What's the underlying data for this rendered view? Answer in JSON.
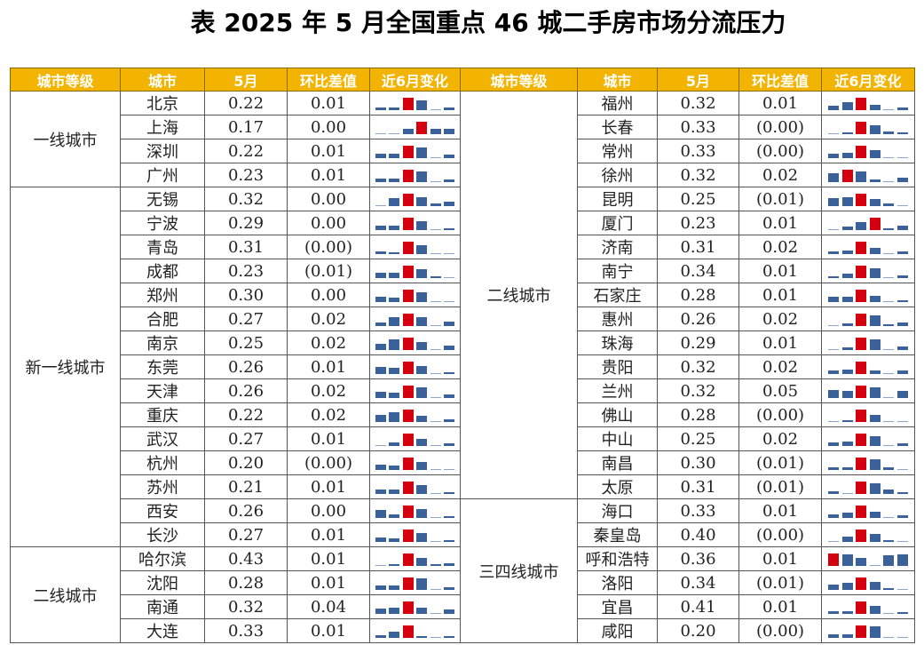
{
  "title": "表 2025 年 5 月全国重点 46 城二手房市场分流压力",
  "headers": [
    "城市等级",
    "城市",
    "5月",
    "环比差值",
    "近6月变化",
    "城市等级",
    "城市",
    "5月",
    "环比差值",
    "近6月变化"
  ],
  "colors": {
    "header_bg": "#f2b400",
    "header_text": "#ffffff",
    "negative_text": "#d0202a",
    "bar_blue": "#3a6199",
    "bar_red": "#d40010"
  },
  "left": {
    "groups": [
      {
        "grade": "一线城市",
        "rows": [
          {
            "city": "北京",
            "may": "0.22",
            "diff": "0.01",
            "neg": false,
            "spark": [
              3,
              3,
              14,
              11,
              1,
              3
            ],
            "peak": 2
          },
          {
            "city": "上海",
            "may": "0.17",
            "diff": "0.00",
            "neg": false,
            "spark": [
              1,
              1,
              6,
              14,
              6,
              6
            ],
            "peak": 3
          },
          {
            "city": "深圳",
            "may": "0.22",
            "diff": "0.01",
            "neg": false,
            "spark": [
              5,
              5,
              14,
              12,
              1,
              4
            ],
            "peak": 2
          },
          {
            "city": "广州",
            "may": "0.23",
            "diff": "0.01",
            "neg": false,
            "spark": [
              4,
              4,
              14,
              12,
              1,
              3
            ],
            "peak": 2
          }
        ]
      },
      {
        "grade": "新一线城市",
        "rows": [
          {
            "city": "无锡",
            "may": "0.32",
            "diff": "0.00",
            "neg": false,
            "spark": [
              1,
              9,
              14,
              10,
              3,
              5
            ],
            "peak": 2
          },
          {
            "city": "宁波",
            "may": "0.29",
            "diff": "0.00",
            "neg": false,
            "spark": [
              5,
              5,
              14,
              10,
              1,
              2
            ],
            "peak": 2
          },
          {
            "city": "青岛",
            "may": "0.31",
            "diff": "(0.00)",
            "neg": true,
            "spark": [
              3,
              2,
              14,
              10,
              1,
              1
            ],
            "peak": 2
          },
          {
            "city": "成都",
            "may": "0.23",
            "diff": "(0.01)",
            "neg": true,
            "spark": [
              6,
              6,
              14,
              10,
              2,
              1
            ],
            "peak": 2
          },
          {
            "city": "郑州",
            "may": "0.30",
            "diff": "0.00",
            "neg": false,
            "spark": [
              6,
              5,
              14,
              11,
              1,
              1
            ],
            "peak": 2
          },
          {
            "city": "合肥",
            "may": "0.27",
            "diff": "0.02",
            "neg": false,
            "spark": [
              4,
              10,
              14,
              10,
              1,
              5
            ],
            "peak": 2
          },
          {
            "city": "南京",
            "may": "0.25",
            "diff": "0.02",
            "neg": false,
            "spark": [
              7,
              12,
              14,
              9,
              1,
              5
            ],
            "peak": 2
          },
          {
            "city": "东莞",
            "may": "0.26",
            "diff": "0.01",
            "neg": false,
            "spark": [
              8,
              7,
              14,
              9,
              1,
              2
            ],
            "peak": 2
          },
          {
            "city": "天津",
            "may": "0.26",
            "diff": "0.02",
            "neg": false,
            "spark": [
              7,
              6,
              14,
              12,
              1,
              4
            ],
            "peak": 2
          },
          {
            "city": "重庆",
            "may": "0.22",
            "diff": "0.02",
            "neg": false,
            "spark": [
              8,
              11,
              14,
              7,
              1,
              3
            ],
            "peak": 2
          },
          {
            "city": "武汉",
            "may": "0.27",
            "diff": "0.01",
            "neg": false,
            "spark": [
              1,
              4,
              14,
              8,
              1,
              3
            ],
            "peak": 2
          },
          {
            "city": "杭州",
            "may": "0.20",
            "diff": "(0.00)",
            "neg": true,
            "spark": [
              6,
              5,
              14,
              9,
              1,
              1
            ],
            "peak": 2
          },
          {
            "city": "苏州",
            "may": "0.21",
            "diff": "0.01",
            "neg": false,
            "spark": [
              5,
              5,
              14,
              10,
              1,
              2
            ],
            "peak": 2
          },
          {
            "city": "西安",
            "may": "0.26",
            "diff": "0.00",
            "neg": false,
            "spark": [
              9,
              4,
              14,
              10,
              1,
              2
            ],
            "peak": 2
          },
          {
            "city": "长沙",
            "may": "0.27",
            "diff": "0.01",
            "neg": false,
            "spark": [
              5,
              4,
              14,
              10,
              1,
              2
            ],
            "peak": 2
          }
        ]
      },
      {
        "grade": "二线城市",
        "rows": [
          {
            "city": "哈尔滨",
            "may": "0.43",
            "diff": "0.01",
            "neg": false,
            "spark": [
              1,
              2,
              14,
              9,
              2,
              3
            ],
            "peak": 2
          },
          {
            "city": "沈阳",
            "may": "0.28",
            "diff": "0.01",
            "neg": false,
            "spark": [
              5,
              5,
              14,
              13,
              1,
              3
            ],
            "peak": 2
          },
          {
            "city": "南通",
            "may": "0.32",
            "diff": "0.04",
            "neg": false,
            "spark": [
              6,
              7,
              14,
              7,
              1,
              5
            ],
            "peak": 2
          },
          {
            "city": "大连",
            "may": "0.33",
            "diff": "0.01",
            "neg": false,
            "spark": [
              3,
              7,
              14,
              2,
              1,
              2
            ],
            "peak": 2
          }
        ]
      }
    ]
  },
  "right": {
    "groups": [
      {
        "grade": "二线城市",
        "rows": [
          {
            "city": "福州",
            "may": "0.32",
            "diff": "0.01",
            "neg": false,
            "spark": [
              5,
              9,
              14,
              6,
              1,
              3
            ],
            "peak": 2
          },
          {
            "city": "长春",
            "may": "0.33",
            "diff": "(0.00)",
            "neg": true,
            "spark": [
              1,
              2,
              14,
              10,
              3,
              2
            ],
            "peak": 2
          },
          {
            "city": "常州",
            "may": "0.33",
            "diff": "(0.00)",
            "neg": true,
            "spark": [
              5,
              6,
              14,
              9,
              1,
              1
            ],
            "peak": 2
          },
          {
            "city": "徐州",
            "may": "0.32",
            "diff": "0.02",
            "neg": false,
            "spark": [
              10,
              14,
              12,
              3,
              1,
              5
            ],
            "peak": 1
          },
          {
            "city": "昆明",
            "may": "0.25",
            "diff": "(0.01)",
            "neg": true,
            "spark": [
              9,
              10,
              14,
              8,
              3,
              1
            ],
            "peak": 2
          },
          {
            "city": "厦门",
            "may": "0.23",
            "diff": "0.01",
            "neg": false,
            "spark": [
              1,
              4,
              9,
              14,
              2,
              5
            ],
            "peak": 3
          },
          {
            "city": "济南",
            "may": "0.31",
            "diff": "0.02",
            "neg": false,
            "spark": [
              3,
              4,
              14,
              7,
              1,
              3
            ],
            "peak": 2
          },
          {
            "city": "南宁",
            "may": "0.34",
            "diff": "0.01",
            "neg": false,
            "spark": [
              2,
              5,
              14,
              11,
              1,
              3
            ],
            "peak": 2
          },
          {
            "city": "石家庄",
            "may": "0.28",
            "diff": "0.01",
            "neg": false,
            "spark": [
              6,
              6,
              14,
              7,
              1,
              2
            ],
            "peak": 2
          },
          {
            "city": "惠州",
            "may": "0.26",
            "diff": "0.02",
            "neg": false,
            "spark": [
              1,
              3,
              14,
              12,
              2,
              4
            ],
            "peak": 2
          },
          {
            "city": "珠海",
            "may": "0.29",
            "diff": "0.01",
            "neg": false,
            "spark": [
              1,
              3,
              14,
              12,
              1,
              4
            ],
            "peak": 2
          },
          {
            "city": "贵阳",
            "may": "0.32",
            "diff": "0.02",
            "neg": false,
            "spark": [
              4,
              5,
              14,
              4,
              1,
              4
            ],
            "peak": 2
          },
          {
            "city": "兰州",
            "may": "0.32",
            "diff": "0.05",
            "neg": false,
            "spark": [
              9,
              8,
              14,
              12,
              1,
              8
            ],
            "peak": 2
          },
          {
            "city": "佛山",
            "may": "0.28",
            "diff": "(0.00)",
            "neg": true,
            "spark": [
              1,
              2,
              14,
              8,
              1,
              1
            ],
            "peak": 2
          },
          {
            "city": "中山",
            "may": "0.25",
            "diff": "0.02",
            "neg": false,
            "spark": [
              4,
              5,
              14,
              11,
              1,
              3
            ],
            "peak": 2
          },
          {
            "city": "南昌",
            "may": "0.30",
            "diff": "(0.01)",
            "neg": true,
            "spark": [
              3,
              3,
              14,
              12,
              3,
              1
            ],
            "peak": 2
          },
          {
            "city": "太原",
            "may": "0.31",
            "diff": "(0.01)",
            "neg": true,
            "spark": [
              3,
              1,
              14,
              12,
              5,
              2
            ],
            "peak": 2
          }
        ]
      },
      {
        "grade": "三四线城市",
        "rows": [
          {
            "city": "海口",
            "may": "0.33",
            "diff": "0.01",
            "neg": false,
            "spark": [
              4,
              6,
              14,
              7,
              1,
              3
            ],
            "peak": 2
          },
          {
            "city": "秦皇岛",
            "may": "0.40",
            "diff": "(0.00)",
            "neg": true,
            "spark": [
              1,
              6,
              14,
              9,
              2,
              1
            ],
            "peak": 2
          },
          {
            "city": "呼和浩特",
            "may": "0.36",
            "diff": "0.01",
            "neg": false,
            "spark": [
              14,
              13,
              9,
              1,
              12,
              13
            ],
            "peak": 0
          },
          {
            "city": "洛阳",
            "may": "0.34",
            "diff": "(0.01)",
            "neg": true,
            "spark": [
              6,
              8,
              14,
              9,
              2,
              1
            ],
            "peak": 2
          },
          {
            "city": "宜昌",
            "may": "0.41",
            "diff": "0.01",
            "neg": false,
            "spark": [
              3,
              3,
              14,
              9,
              1,
              2
            ],
            "peak": 2
          },
          {
            "city": "咸阳",
            "may": "0.20",
            "diff": "(0.00)",
            "neg": true,
            "spark": [
              4,
              4,
              14,
              13,
              1,
              1
            ],
            "peak": 2
          }
        ]
      }
    ]
  }
}
